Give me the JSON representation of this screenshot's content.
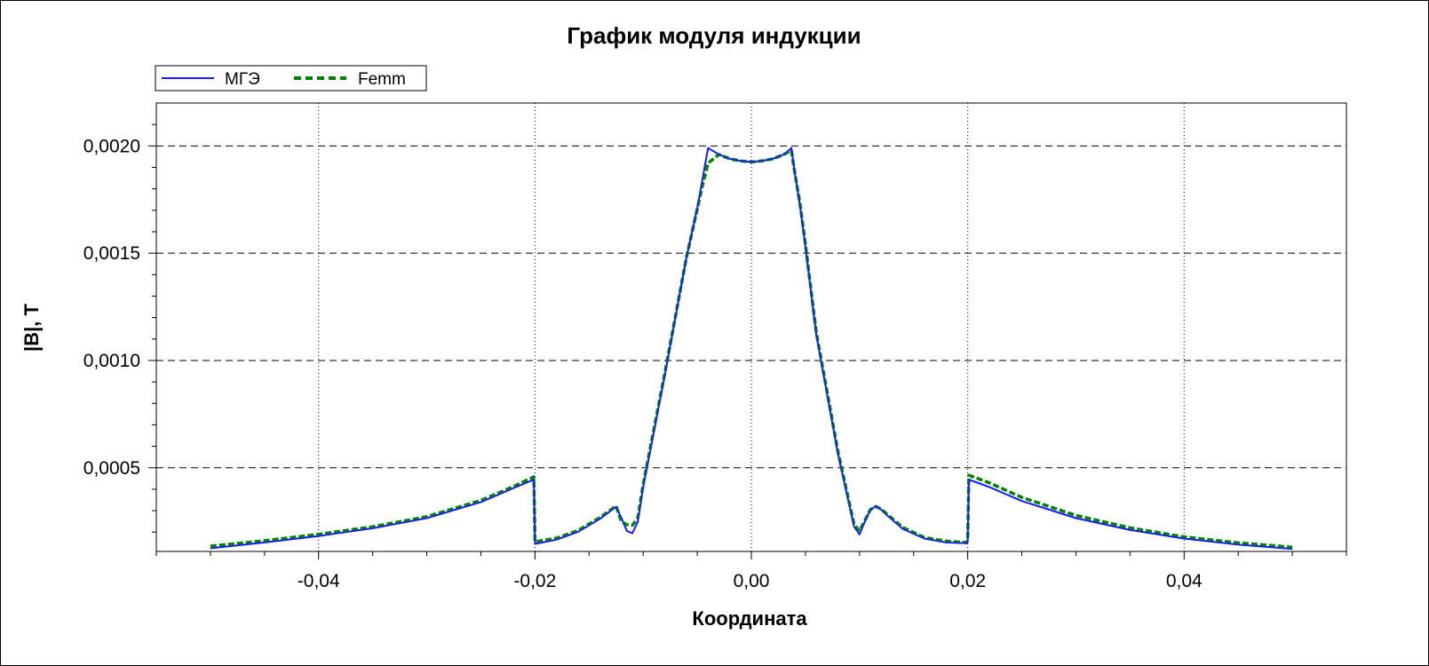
{
  "chart_data": {
    "type": "line",
    "title": "График модуля индукции",
    "xlabel": "Координата",
    "ylabel": "|B|, T",
    "xlim": [
      -0.055,
      0.055
    ],
    "ylim": [
      0.00011,
      0.0022
    ],
    "x_ticks": [
      -0.04,
      -0.02,
      0.0,
      0.02,
      0.04
    ],
    "x_tick_labels": [
      "-0,04",
      "-0,02",
      "0,00",
      "0,02",
      "0,04"
    ],
    "y_ticks": [
      0.0005,
      0.001,
      0.0015,
      0.002
    ],
    "y_tick_labels": [
      "0,0005",
      "0,0010",
      "0,0015",
      "0,0020"
    ],
    "grid": {
      "vertical": "dotted",
      "horizontal": "dashed"
    },
    "legend_position": "top-left",
    "series": [
      {
        "name": "МГЭ",
        "color": "#1a1aff",
        "style": "solid",
        "x": [
          -0.05,
          -0.045,
          -0.04,
          -0.035,
          -0.03,
          -0.025,
          -0.022,
          -0.0201,
          -0.02,
          -0.018,
          -0.016,
          -0.014,
          -0.0125,
          -0.012,
          -0.0115,
          -0.011,
          -0.0105,
          -0.01,
          -0.008,
          -0.006,
          -0.005,
          -0.0045,
          -0.004,
          -0.003,
          -0.002,
          -0.001,
          0.0,
          0.001,
          0.002,
          0.003,
          0.0037,
          0.004,
          0.0045,
          0.005,
          0.006,
          0.008,
          0.0095,
          0.01,
          0.0105,
          0.011,
          0.0115,
          0.012,
          0.0125,
          0.014,
          0.016,
          0.018,
          0.0199,
          0.02,
          0.0201,
          0.022,
          0.025,
          0.03,
          0.035,
          0.04,
          0.045,
          0.05
        ],
        "values": [
          0.000125,
          0.000152,
          0.000182,
          0.000218,
          0.000265,
          0.00034,
          0.000405,
          0.000445,
          0.000145,
          0.000165,
          0.000202,
          0.000262,
          0.000318,
          0.000265,
          0.000205,
          0.000195,
          0.000248,
          0.00041,
          0.00093,
          0.00148,
          0.00171,
          0.00185,
          0.00199,
          0.00196,
          0.00194,
          0.00193,
          0.001925,
          0.00193,
          0.00194,
          0.00196,
          0.00199,
          0.00188,
          0.00172,
          0.00153,
          0.00112,
          0.000565,
          0.000225,
          0.00019,
          0.00025,
          0.000305,
          0.00032,
          0.000305,
          0.00028,
          0.000215,
          0.00017,
          0.000152,
          0.000148,
          0.000155,
          0.000445,
          0.00041,
          0.000345,
          0.000265,
          0.00021,
          0.00017,
          0.000142,
          0.000122
        ]
      },
      {
        "name": "Femm",
        "color": "#008000",
        "style": "dashed",
        "x": [
          -0.05,
          -0.045,
          -0.04,
          -0.035,
          -0.03,
          -0.025,
          -0.022,
          -0.0201,
          -0.02,
          -0.018,
          -0.016,
          -0.014,
          -0.0125,
          -0.012,
          -0.0115,
          -0.011,
          -0.0105,
          -0.01,
          -0.008,
          -0.006,
          -0.0045,
          -0.004,
          -0.003,
          -0.002,
          -0.001,
          0.0,
          0.001,
          0.002,
          0.003,
          0.0037,
          0.004,
          0.0045,
          0.005,
          0.006,
          0.008,
          0.0095,
          0.01,
          0.0105,
          0.011,
          0.0115,
          0.012,
          0.0125,
          0.014,
          0.016,
          0.018,
          0.0199,
          0.02,
          0.0201,
          0.022,
          0.025,
          0.03,
          0.035,
          0.04,
          0.045,
          0.05
        ],
        "values": [
          0.000135,
          0.00016,
          0.00019,
          0.000225,
          0.000272,
          0.000348,
          0.000412,
          0.000458,
          0.000155,
          0.000172,
          0.000208,
          0.000268,
          0.000322,
          0.000248,
          0.000235,
          0.000232,
          0.000265,
          0.000422,
          0.00094,
          0.00148,
          0.00182,
          0.00192,
          0.00196,
          0.00194,
          0.00193,
          0.001925,
          0.00193,
          0.00194,
          0.00196,
          0.00198,
          0.00188,
          0.00173,
          0.00154,
          0.00113,
          0.000575,
          0.000235,
          0.000205,
          0.000255,
          0.000305,
          0.00032,
          0.000308,
          0.000285,
          0.000222,
          0.000175,
          0.000158,
          0.000152,
          0.00016,
          0.000465,
          0.00043,
          0.000362,
          0.000278,
          0.00022,
          0.000178,
          0.00015,
          0.00013
        ]
      }
    ]
  }
}
